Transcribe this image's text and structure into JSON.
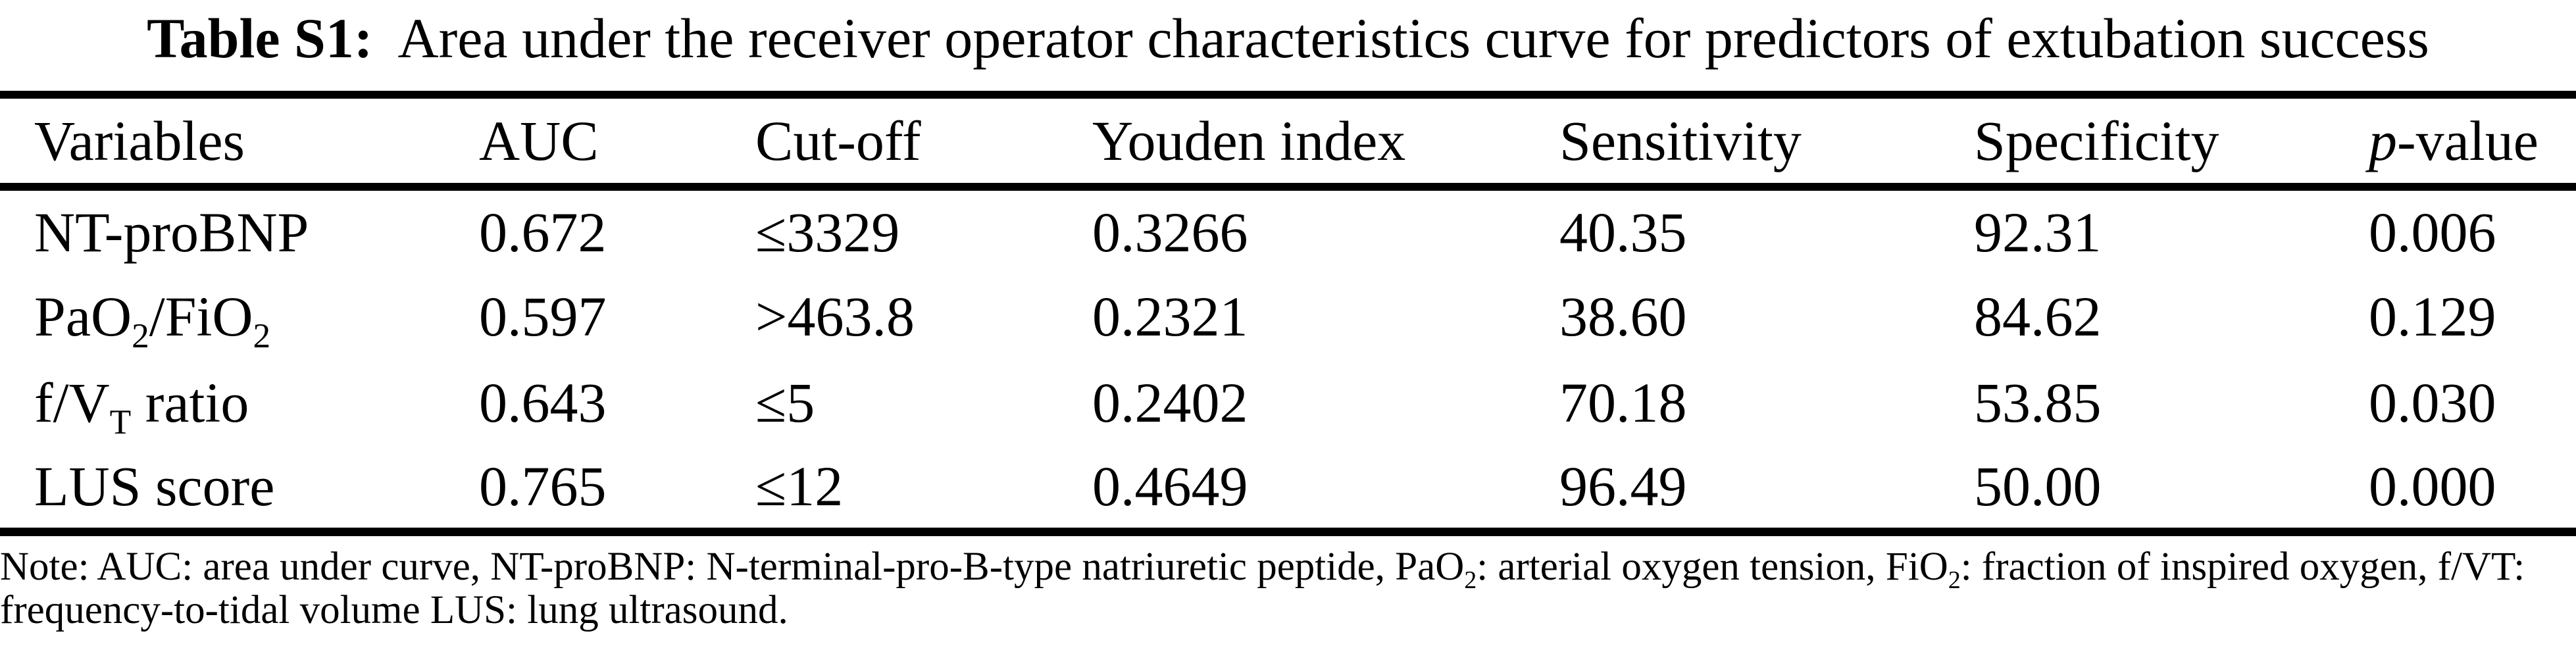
{
  "document": {
    "title_label": "Table S1:",
    "title_text": "Area under the receiver operator characteristics curve for predictors of extubation success"
  },
  "table": {
    "columns": [
      "Variables",
      "AUC",
      "Cut-off",
      "Youden index",
      "Sensitivity",
      "Specificity",
      "p-value"
    ],
    "p_value_header_html": "<i>p</i>-value",
    "rows": [
      {
        "variable_html": "NT-proBNP",
        "auc": "0.672",
        "cut_off": "≤3329",
        "youden_index": "0.3266",
        "sensitivity": "40.35",
        "specificity": "92.31",
        "p_value": "0.006"
      },
      {
        "variable_html": "PaO<sub>2</sub>/FiO<sub>2</sub>",
        "auc": "0.597",
        "cut_off": ">463.8",
        "youden_index": "0.2321",
        "sensitivity": "38.60",
        "specificity": "84.62",
        "p_value": "0.129"
      },
      {
        "variable_html": "f/V<sub>T</sub> ratio",
        "auc": "0.643",
        "cut_off": "≤5",
        "youden_index": "0.2402",
        "sensitivity": "70.18",
        "specificity": "53.85",
        "p_value": "0.030"
      },
      {
        "variable_html": "LUS score",
        "auc": "0.765",
        "cut_off": "≤12",
        "youden_index": "0.4649",
        "sensitivity": "96.49",
        "specificity": "50.00",
        "p_value": "0.000"
      }
    ]
  },
  "note_html": "Note: AUC: area under curve, NT-proBNP: N-terminal-pro-B-type natriuretic peptide, PaO<sub>2</sub>: arterial oxygen tension, FiO<sub>2</sub>: fraction of inspired oxygen, f/VT: frequency-to-tidal volume LUS: lung ultrasound."
}
